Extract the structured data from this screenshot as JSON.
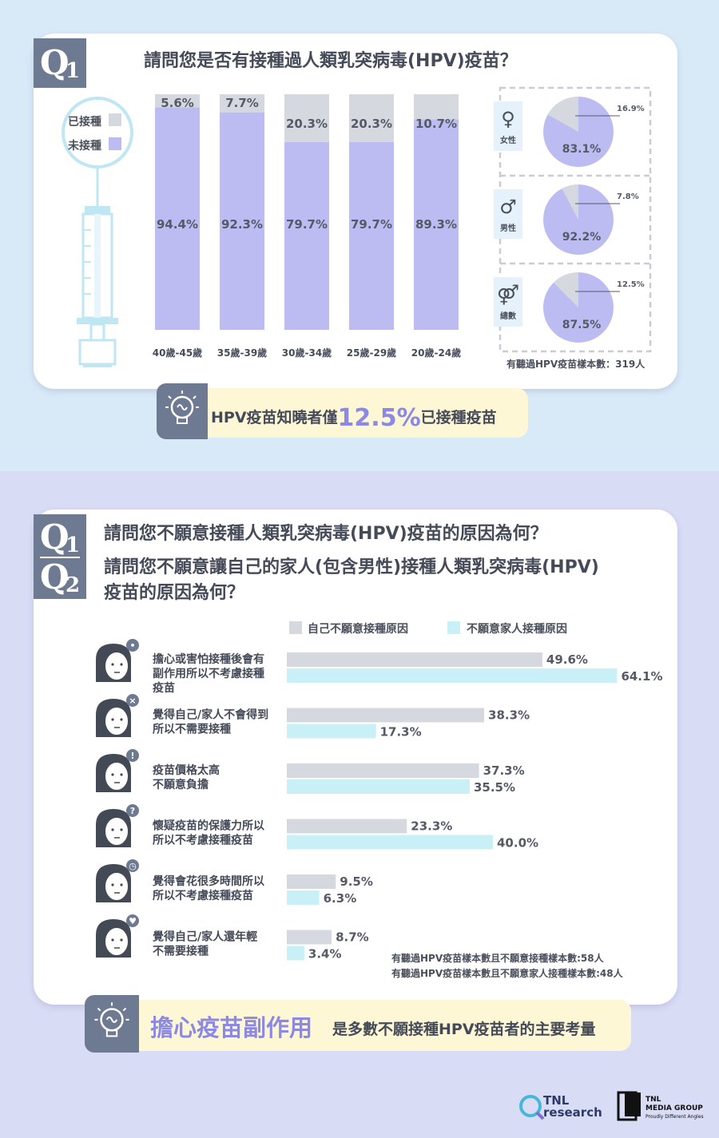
{
  "colors": {
    "vaccinated": "#d5d9df",
    "not_vaccinated": "#bcbcf2",
    "self_reason": "#d5d9df",
    "family_reason": "#c9f0f6",
    "accent": "#8b88e6",
    "qbox": "#6e7a91"
  },
  "q1": {
    "q_label": "Q",
    "q_num": "1",
    "title": "請問您是否有接種過人類乳突病毒(HPV)疫苗？",
    "legend": {
      "vaccinated": "已接種",
      "not_vaccinated": "未接種"
    },
    "sample_note": "有聽過HPV疫苗樣本數：319人",
    "pie_groups": [
      {
        "icon": "♀",
        "label": "女性"
      },
      {
        "icon": "♂",
        "label": "男性"
      },
      {
        "icon": "⚤",
        "label": "總數"
      }
    ],
    "callout": {
      "before": "HPV疫苗知曉者僅",
      "highlight": "12.5%",
      "after": "已接種疫苗"
    }
  },
  "q2": {
    "q1_label": "Q",
    "q1_num": "1",
    "q2_label": "Q",
    "q2_num": "2",
    "title_line1": "請問您不願意接種人類乳突病毒(HPV)疫苗的原因為何？",
    "title_line2": "請問您不願意讓自己的家人(包含男性)接種人類乳突病毒(HPV)",
    "title_line3": "疫苗的原因為何？",
    "legend": {
      "self": "自己不願意接種原因",
      "family": "不願意家人接種原因"
    },
    "sample_note_1": "有聽過HPV疫苗樣本數且不願意接種樣本數:58人",
    "sample_note_2": "有聽過HPV疫苗樣本數且不願意家人接種樣本數:48人",
    "callout": {
      "highlight": "擔心疫苗副作用",
      "after": "是多數不願接種HPV疫苗者的主要考量"
    }
  },
  "footer": {
    "tnl_line1": "TNL",
    "tnl_line2": "research",
    "media_line1": "TNL",
    "media_line2": "MEDIA GROUP",
    "media_line3": "Proudly Different Angles"
  },
  "chart_data": [
    {
      "type": "bar",
      "stacked": true,
      "orientation": "vertical",
      "categories": [
        "40歲-45歲",
        "35歲-39歲",
        "30歲-34歲",
        "25歲-29歲",
        "20歲-24歲"
      ],
      "series": [
        {
          "name": "已接種",
          "values": [
            5.6,
            7.7,
            20.3,
            20.3,
            10.7
          ],
          "labels": [
            "5.6%",
            "7.7%",
            "20.3%",
            "20.3%",
            "10.7%"
          ]
        },
        {
          "name": "未接種",
          "values": [
            94.4,
            92.3,
            79.7,
            79.7,
            89.3
          ],
          "labels": [
            "94.4%",
            "92.3%",
            "79.7%",
            "79.7%",
            "89.3%"
          ]
        }
      ],
      "ylim": [
        0,
        100
      ],
      "grid": false,
      "legend": "left"
    },
    {
      "type": "pie",
      "charts": [
        {
          "group": "女性",
          "values": [
            16.9,
            83.1
          ],
          "labels": [
            "16.9%",
            "83.1%"
          ]
        },
        {
          "group": "男性",
          "values": [
            7.8,
            92.2
          ],
          "labels": [
            "7.8%",
            "92.2%"
          ]
        },
        {
          "group": "總數",
          "values": [
            12.5,
            87.5
          ],
          "labels": [
            "12.5%",
            "87.5%"
          ]
        }
      ],
      "slice_names": [
        "已接種",
        "未接種"
      ]
    },
    {
      "type": "bar",
      "orientation": "horizontal",
      "categories": [
        [
          "擔心或害怕接種後會有",
          "副作用所以不考慮接種",
          "疫苗"
        ],
        [
          "覺得自己/家人不會得到",
          "所以不需要接種"
        ],
        [
          "疫苗價格太高",
          "不願意負擔"
        ],
        [
          "懷疑疫苗的保護力所以",
          "所以不考慮接種疫苗"
        ],
        [
          "覺得會花很多時間所以",
          "所以不考慮接種疫苗"
        ],
        [
          "覺得自己/家人還年輕",
          "不需要接種"
        ]
      ],
      "series": [
        {
          "name": "自己不願意接種原因",
          "values": [
            49.6,
            38.3,
            37.3,
            23.3,
            9.5,
            8.7
          ],
          "labels": [
            "49.6%",
            "38.3%",
            "37.3%",
            "23.3%",
            "9.5%",
            "8.7%"
          ]
        },
        {
          "name": "不願意家人接種原因",
          "values": [
            64.1,
            17.3,
            35.5,
            40.0,
            6.3,
            3.4
          ],
          "labels": [
            "64.1%",
            "17.3%",
            "35.5%",
            "40.0%",
            "6.3%",
            "3.4%"
          ]
        }
      ],
      "xlim": [
        0,
        100
      ],
      "grid": false,
      "legend": "top"
    }
  ]
}
